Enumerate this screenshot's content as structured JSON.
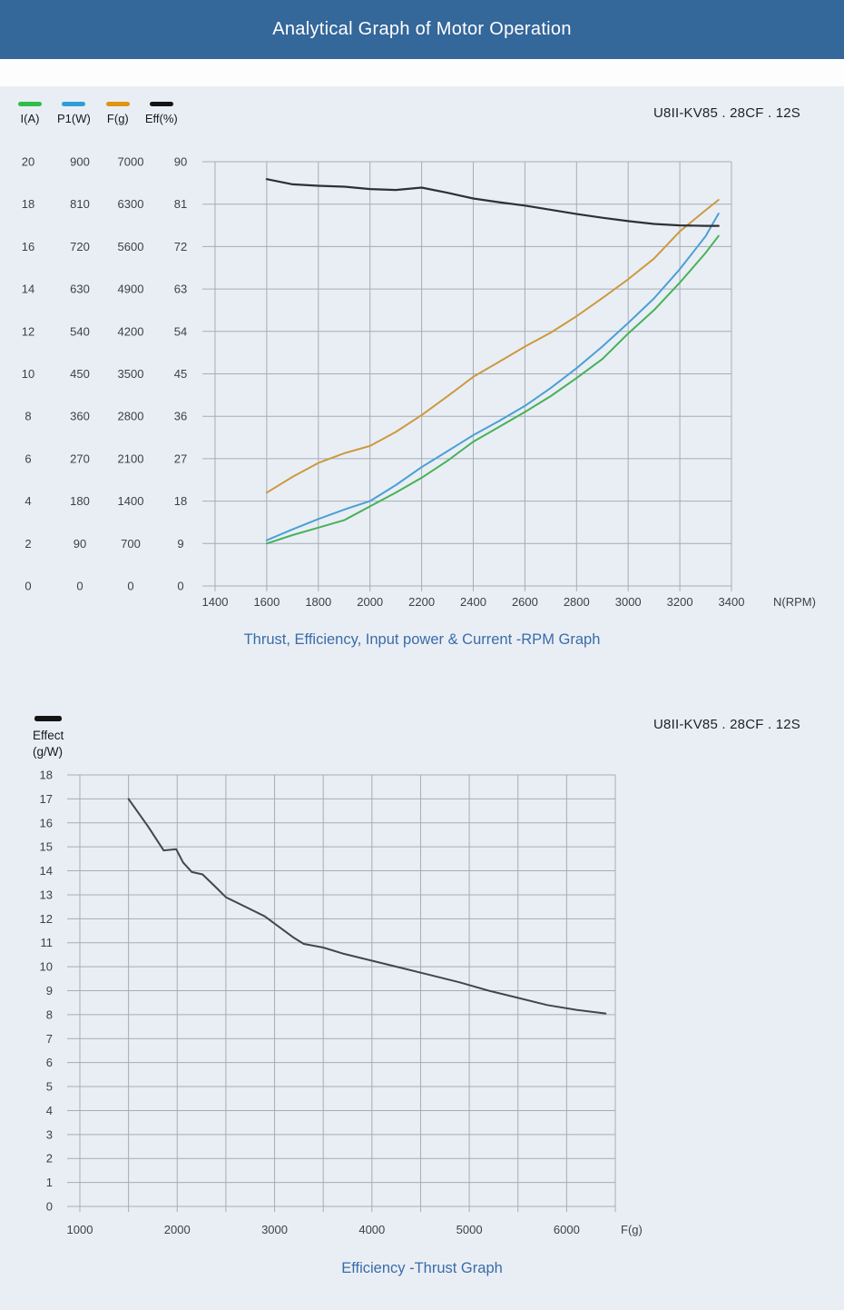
{
  "page_bg": "#e9eef5",
  "header": {
    "title": "Analytical Graph of Motor Operation",
    "bg": "#34679a",
    "text_color": "#ffffff"
  },
  "model_label": "U8II-KV85 . 28CF . 12S",
  "title_color": "#3a6ca8",
  "grid_color": "#a6acb6",
  "tick_color": "#3b404a",
  "chart_data": [
    {
      "type": "line",
      "title": "Thrust, Efficiency, Input power & Current -RPM Graph",
      "x_axis": {
        "label": "N(RPM)",
        "min": 1400,
        "max": 3400,
        "gridline_step": 200,
        "tick_labels": [
          1400,
          1600,
          1800,
          2000,
          2200,
          2400,
          2600,
          2800,
          3000,
          3200,
          3400
        ]
      },
      "y_axes": [
        {
          "label": "I(A)",
          "min": 0,
          "max": 20,
          "ticks": [
            0,
            2,
            4,
            6,
            8,
            10,
            12,
            14,
            16,
            18,
            20
          ]
        },
        {
          "label": "P1(W)",
          "min": 0,
          "max": 900,
          "ticks": [
            0,
            90,
            180,
            270,
            360,
            450,
            540,
            630,
            720,
            810,
            900
          ]
        },
        {
          "label": "F(g)",
          "min": 0,
          "max": 7000,
          "ticks": [
            0,
            700,
            1400,
            2100,
            2800,
            3500,
            4200,
            4900,
            5600,
            6300,
            7000
          ]
        },
        {
          "label": "Eff(%)",
          "min": 0,
          "max": 90,
          "ticks": [
            0,
            9,
            18,
            27,
            36,
            45,
            54,
            63,
            72,
            81,
            90
          ]
        }
      ],
      "legend": [
        {
          "label": "I(A)",
          "color": "#2fbe4a"
        },
        {
          "label": "P1(W)",
          "color": "#2d9fd8"
        },
        {
          "label": "F(g)",
          "color": "#e09414"
        },
        {
          "label": "Eff(%)",
          "color": "#141414"
        }
      ],
      "rpm": [
        1600,
        1700,
        1800,
        1900,
        2000,
        2100,
        2200,
        2300,
        2400,
        2500,
        2600,
        2700,
        2800,
        2900,
        3000,
        3100,
        3200,
        3300,
        3350
      ],
      "series": [
        {
          "name": "I(A)",
          "axis": 0,
          "color": "#47b257",
          "width": 2,
          "values": [
            2.0,
            2.4,
            2.75,
            3.1,
            3.75,
            4.4,
            5.1,
            5.9,
            6.8,
            7.5,
            8.2,
            8.95,
            9.8,
            10.7,
            11.9,
            13.0,
            14.3,
            15.7,
            16.5
          ]
        },
        {
          "name": "P1(W)",
          "axis": 1,
          "color": "#4aa0d5",
          "width": 2,
          "values": [
            97,
            120,
            142,
            162,
            180,
            214,
            252,
            286,
            320,
            350,
            382,
            420,
            462,
            508,
            558,
            610,
            672,
            742,
            790
          ]
        },
        {
          "name": "F(g)",
          "axis": 2,
          "color": "#cc9a3e",
          "width": 2,
          "values": [
            1540,
            1800,
            2030,
            2190,
            2310,
            2540,
            2820,
            3130,
            3450,
            3700,
            3950,
            4180,
            4450,
            4750,
            5060,
            5400,
            5850,
            6200,
            6370
          ]
        },
        {
          "name": "Eff(%)",
          "axis": 3,
          "color": "#2e3033",
          "width": 2.2,
          "values": [
            86.3,
            85.2,
            84.9,
            84.7,
            84.2,
            84.0,
            84.5,
            83.4,
            82.2,
            81.4,
            80.7,
            79.8,
            78.9,
            78.1,
            77.4,
            76.8,
            76.5,
            76.4,
            76.4
          ]
        }
      ]
    },
    {
      "type": "line",
      "title": "Efficiency -Thrust Graph",
      "legend": [
        {
          "label": "Effect",
          "sublabel": "(g/W)",
          "color": "#141414"
        }
      ],
      "x_axis": {
        "label": "F(g)",
        "min": 1000,
        "max": 6500,
        "gridline_step": 500,
        "tick_labels": [
          1000,
          2000,
          3000,
          4000,
          5000,
          6000
        ]
      },
      "y_axis": {
        "label": "Effect (g/W)",
        "min": 0,
        "max": 18,
        "ticks": [
          0,
          1,
          2,
          3,
          4,
          5,
          6,
          7,
          8,
          9,
          10,
          11,
          12,
          13,
          14,
          15,
          16,
          17,
          18
        ]
      },
      "series": [
        {
          "name": "Effect (g/W)",
          "color": "#42464e",
          "width": 2,
          "x": [
            1500,
            1700,
            1860,
            1990,
            2060,
            2150,
            2260,
            2400,
            2500,
            2700,
            2900,
            3050,
            3200,
            3300,
            3500,
            3700,
            4000,
            4300,
            4600,
            4900,
            5200,
            5500,
            5800,
            6100,
            6400
          ],
          "values": [
            17.0,
            15.85,
            14.85,
            14.9,
            14.35,
            13.95,
            13.85,
            13.3,
            12.9,
            12.5,
            12.1,
            11.65,
            11.2,
            10.95,
            10.8,
            10.55,
            10.25,
            9.95,
            9.65,
            9.35,
            9.0,
            8.7,
            8.4,
            8.2,
            8.05
          ]
        }
      ]
    }
  ]
}
